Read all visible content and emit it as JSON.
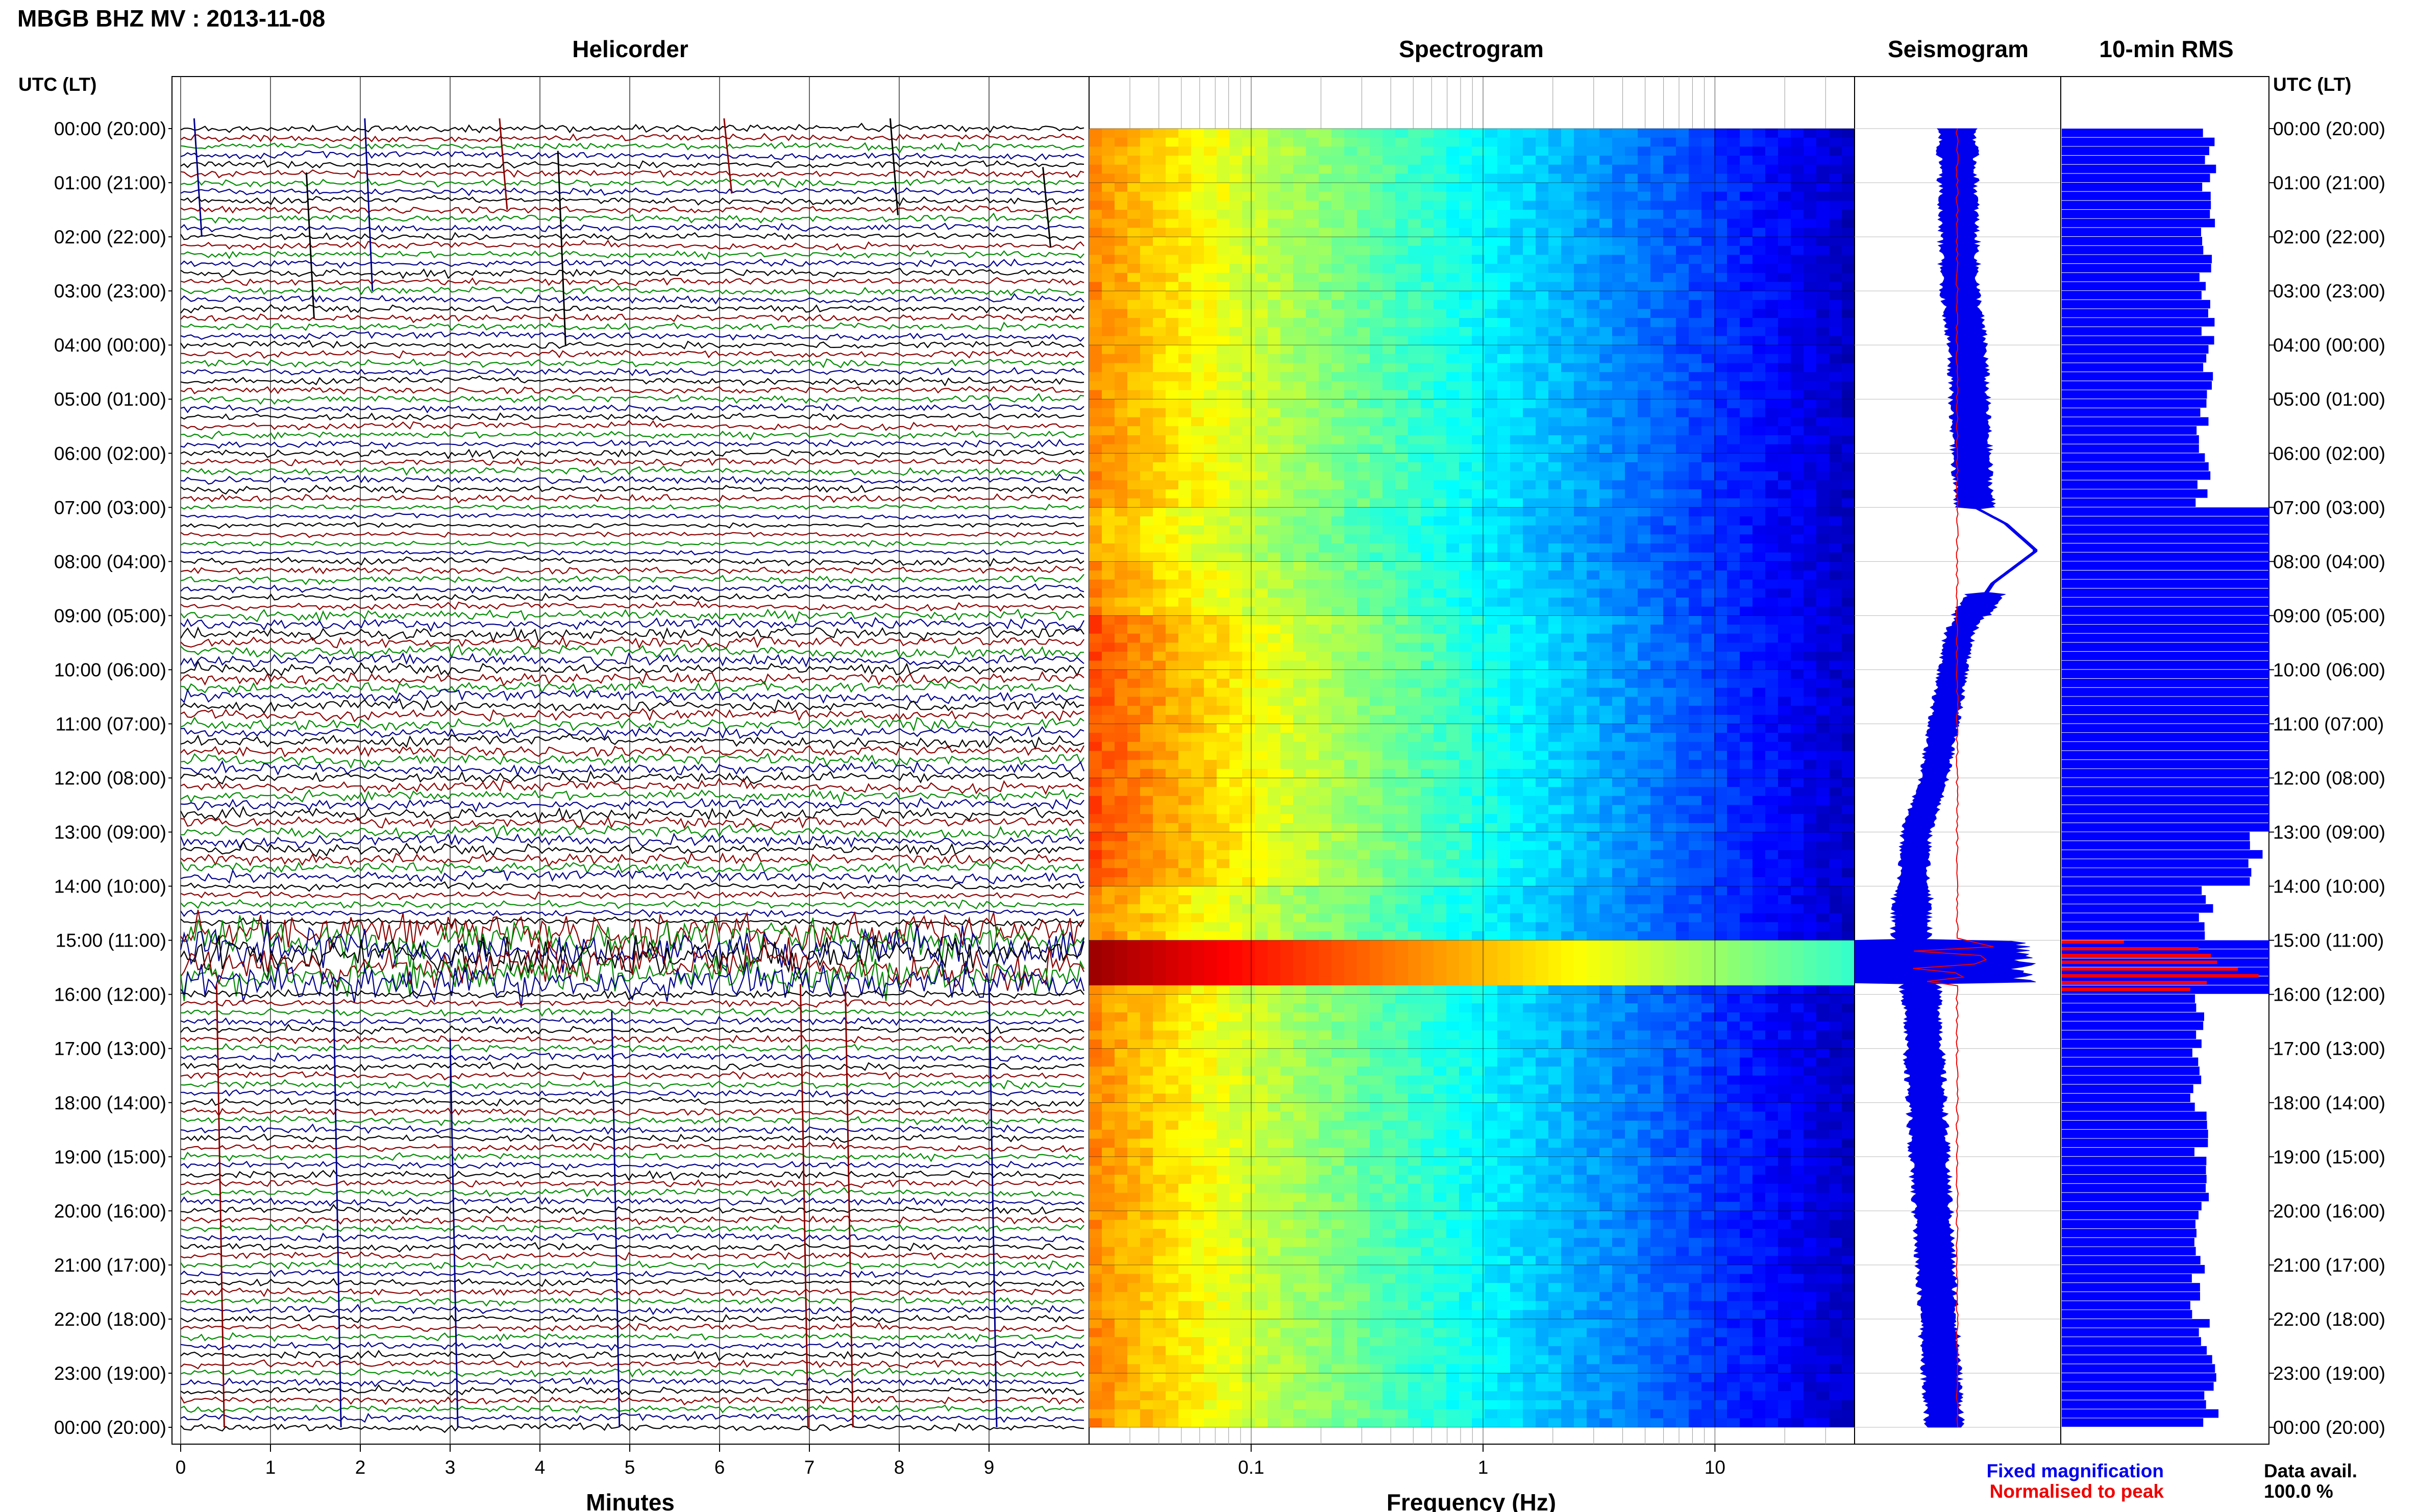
{
  "title": "MBGB BHZ MV : 2013-11-08",
  "axis_header_left": "UTC (LT)",
  "axis_header_right": "UTC (LT)",
  "panels": {
    "helicorder": "Helicorder",
    "spectrogram": "Spectrogram",
    "seismogram": "Seismogram",
    "rms": "10-min RMS"
  },
  "xlabels": {
    "helicorder": "Minutes",
    "spectrogram": "Frequency (Hz)"
  },
  "legend": {
    "fixed": "Fixed magnification",
    "normalised": "Normalised to peak",
    "fixed_color": "#0000ee",
    "normalised_color": "#ee0000",
    "data_avail_label": "Data avail.",
    "data_avail_value": "100.0 %"
  },
  "colors": {
    "trace_cycle": [
      "#000000",
      "#8b0000",
      "#008b00",
      "#00008b"
    ],
    "rms_fixed": "#0000ff",
    "rms_normalised": "#ff0000"
  },
  "chart_data": [
    {
      "type": "line",
      "panel": "helicorder",
      "xlabel": "Minutes",
      "x_ticks": [
        0,
        1,
        2,
        3,
        4,
        5,
        6,
        7,
        8,
        9
      ],
      "xlim": [
        0,
        10
      ],
      "rows_per_hour": 6,
      "y_ticks_utc": [
        "00:00 (20:00)",
        "01:00 (21:00)",
        "02:00 (22:00)",
        "03:00 (23:00)",
        "04:00 (00:00)",
        "05:00 (01:00)",
        "06:00 (02:00)",
        "07:00 (03:00)",
        "08:00 (04:00)",
        "09:00 (05:00)",
        "10:00 (06:00)",
        "11:00 (07:00)",
        "12:00 (08:00)",
        "13:00 (09:00)",
        "14:00 (10:00)",
        "15:00 (11:00)",
        "16:00 (12:00)",
        "17:00 (13:00)",
        "18:00 (14:00)",
        "19:00 (15:00)",
        "20:00 (16:00)",
        "21:00 (17:00)",
        "22:00 (18:00)",
        "23:00 (19:00)",
        "00:00 (20:00)"
      ]
    },
    {
      "type": "heatmap",
      "panel": "spectrogram",
      "xlabel": "Frequency (Hz)",
      "x_scale": "log",
      "x_ticks": [
        0.1,
        1,
        10
      ],
      "x_tick_labels": [
        "0.1",
        "1",
        "10"
      ],
      "xlim": [
        0.02,
        40
      ],
      "colormap": "jet"
    },
    {
      "type": "line",
      "panel": "seismogram",
      "series": [
        {
          "name": "Fixed magnification",
          "color": "#0000ee"
        },
        {
          "name": "Normalised to peak",
          "color": "#ee0000"
        }
      ]
    },
    {
      "type": "bar",
      "panel": "rms",
      "orientation": "horizontal",
      "categories_hours": 24,
      "bins_per_hour": 6,
      "hourly_fixed_rms": [
        0.72,
        0.71,
        0.7,
        0.7,
        0.7,
        0.68,
        0.68,
        1.0,
        1.0,
        1.0,
        1.0,
        1.0,
        1.0,
        0.94,
        0.7,
        1.0,
        0.66,
        0.66,
        0.68,
        0.68,
        0.66,
        0.66,
        0.7,
        0.72
      ],
      "normalised_rms_15h": [
        0.3,
        0.66,
        0.72,
        0.75,
        0.85,
        0.95,
        0.7,
        0.62
      ],
      "series": [
        {
          "name": "Fixed magnification",
          "color": "#0000ff"
        },
        {
          "name": "Normalised to peak",
          "color": "#ff0000"
        }
      ]
    }
  ]
}
